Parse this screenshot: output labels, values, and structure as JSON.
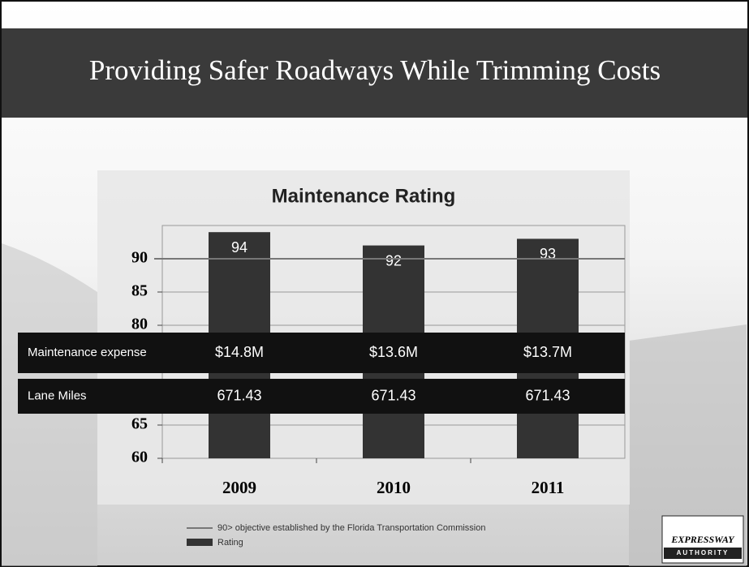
{
  "slide": {
    "title": "Providing Safer Roadways While Trimming Costs"
  },
  "chart_data": {
    "type": "bar",
    "title": "Maintenance Rating",
    "categories": [
      "2009",
      "2010",
      "2011"
    ],
    "series": [
      {
        "name": "Rating",
        "color": "#333333",
        "values": [
          94,
          92,
          93
        ]
      }
    ],
    "reference_line": {
      "value": 90,
      "name": "90> objective established by the Florida Transportation Commission",
      "color": "#777777"
    },
    "ylim": [
      60,
      95
    ],
    "yticks": [
      60,
      65,
      80,
      85,
      90
    ],
    "grid": true
  },
  "table": {
    "rows": [
      {
        "label": "Maintenance expense",
        "values": [
          "$14.8M",
          "$13.6M",
          "$13.7M"
        ]
      },
      {
        "label": "Lane Miles",
        "values": [
          "671.43",
          "671.43",
          "671.43"
        ]
      }
    ]
  },
  "logo": {
    "line1": "EXPRESSWAY",
    "line2": "AUTHORITY"
  }
}
